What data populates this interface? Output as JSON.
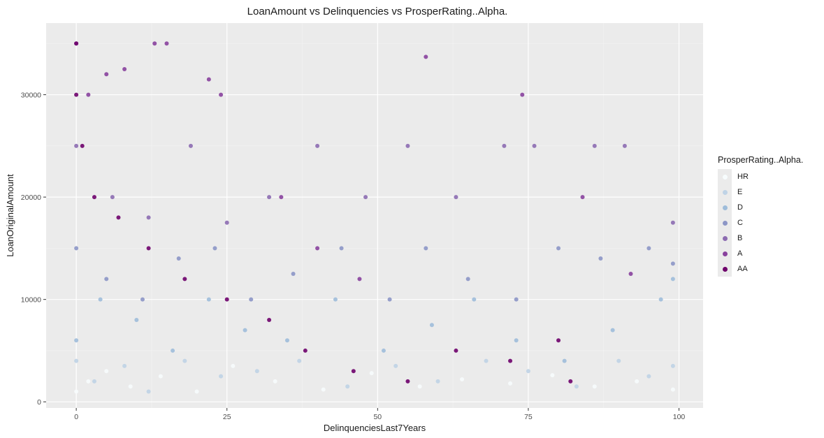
{
  "chart_data": {
    "type": "scatter",
    "title": "LoanAmount vs Delinquencies vs ProsperRating..Alpha.",
    "xlabel": "DelinquenciesLast7Years",
    "ylabel": "LoanOriginalAmount",
    "xlim": [
      -5,
      104
    ],
    "ylim": [
      -600,
      37000
    ],
    "x_ticks": [
      0,
      25,
      50,
      75,
      100
    ],
    "y_ticks": [
      0,
      10000,
      20000,
      30000
    ],
    "grid": true,
    "legend_position": "right",
    "legend_title": "ProsperRating..Alpha.",
    "series": [
      {
        "name": "HR",
        "color": "#f7fcfd",
        "points": [
          [
            0,
            1000
          ],
          [
            2,
            2000
          ],
          [
            5,
            3000
          ],
          [
            9,
            1500
          ],
          [
            14,
            2500
          ],
          [
            20,
            1000
          ],
          [
            26,
            3500
          ],
          [
            33,
            2000
          ],
          [
            41,
            1200
          ],
          [
            49,
            2800
          ],
          [
            57,
            1500
          ],
          [
            64,
            2200
          ],
          [
            72,
            1800
          ],
          [
            79,
            2600
          ],
          [
            86,
            1500
          ],
          [
            93,
            2000
          ],
          [
            99,
            1200
          ]
        ]
      },
      {
        "name": "E",
        "color": "#bfd3e6",
        "points": [
          [
            0,
            4000
          ],
          [
            3,
            2000
          ],
          [
            8,
            3500
          ],
          [
            12,
            1000
          ],
          [
            18,
            4000
          ],
          [
            24,
            2500
          ],
          [
            30,
            3000
          ],
          [
            37,
            4000
          ],
          [
            45,
            1500
          ],
          [
            53,
            3500
          ],
          [
            60,
            2000
          ],
          [
            68,
            4000
          ],
          [
            75,
            3000
          ],
          [
            83,
            1500
          ],
          [
            90,
            4000
          ],
          [
            95,
            2500
          ],
          [
            99,
            3500
          ]
        ]
      },
      {
        "name": "D",
        "color": "#9ebcda",
        "points": [
          [
            0,
            6000
          ],
          [
            4,
            10000
          ],
          [
            10,
            8000
          ],
          [
            16,
            5000
          ],
          [
            22,
            10000
          ],
          [
            28,
            7000
          ],
          [
            35,
            6000
          ],
          [
            43,
            10000
          ],
          [
            51,
            5000
          ],
          [
            59,
            7500
          ],
          [
            66,
            10000
          ],
          [
            73,
            6000
          ],
          [
            81,
            4000
          ],
          [
            89,
            7000
          ],
          [
            97,
            10000
          ],
          [
            99,
            12000
          ]
        ]
      },
      {
        "name": "C",
        "color": "#8c96c6",
        "points": [
          [
            0,
            15000
          ],
          [
            5,
            12000
          ],
          [
            11,
            10000
          ],
          [
            17,
            14000
          ],
          [
            23,
            15000
          ],
          [
            29,
            10000
          ],
          [
            36,
            12500
          ],
          [
            44,
            15000
          ],
          [
            52,
            10000
          ],
          [
            58,
            15000
          ],
          [
            65,
            12000
          ],
          [
            73,
            10000
          ],
          [
            80,
            15000
          ],
          [
            87,
            14000
          ],
          [
            95,
            15000
          ],
          [
            99,
            13500
          ]
        ]
      },
      {
        "name": "B",
        "color": "#8c6bb1",
        "points": [
          [
            0,
            25000
          ],
          [
            6,
            20000
          ],
          [
            12,
            18000
          ],
          [
            19,
            25000
          ],
          [
            25,
            17500
          ],
          [
            32,
            20000
          ],
          [
            40,
            25000
          ],
          [
            48,
            20000
          ],
          [
            55,
            25000
          ],
          [
            63,
            20000
          ],
          [
            71,
            25000
          ],
          [
            76,
            25000
          ],
          [
            86,
            25000
          ],
          [
            91,
            25000
          ],
          [
            99,
            17500
          ]
        ]
      },
      {
        "name": "A",
        "color": "#88419d",
        "points": [
          [
            0,
            35000
          ],
          [
            2,
            30000
          ],
          [
            5,
            32000
          ],
          [
            8,
            32500
          ],
          [
            13,
            35000
          ],
          [
            15,
            35000
          ],
          [
            22,
            31500
          ],
          [
            24,
            30000
          ],
          [
            34,
            20000
          ],
          [
            40,
            15000
          ],
          [
            47,
            12000
          ],
          [
            58,
            33700
          ],
          [
            74,
            30000
          ],
          [
            84,
            20000
          ],
          [
            92,
            12500
          ]
        ]
      },
      {
        "name": "AA",
        "color": "#6e016b",
        "points": [
          [
            0,
            35000
          ],
          [
            0,
            30000
          ],
          [
            1,
            25000
          ],
          [
            3,
            20000
          ],
          [
            7,
            18000
          ],
          [
            12,
            15000
          ],
          [
            18,
            12000
          ],
          [
            25,
            10000
          ],
          [
            32,
            8000
          ],
          [
            38,
            5000
          ],
          [
            46,
            3000
          ],
          [
            55,
            2000
          ],
          [
            63,
            5000
          ],
          [
            72,
            4000
          ],
          [
            80,
            6000
          ],
          [
            82,
            2000
          ]
        ]
      }
    ]
  }
}
